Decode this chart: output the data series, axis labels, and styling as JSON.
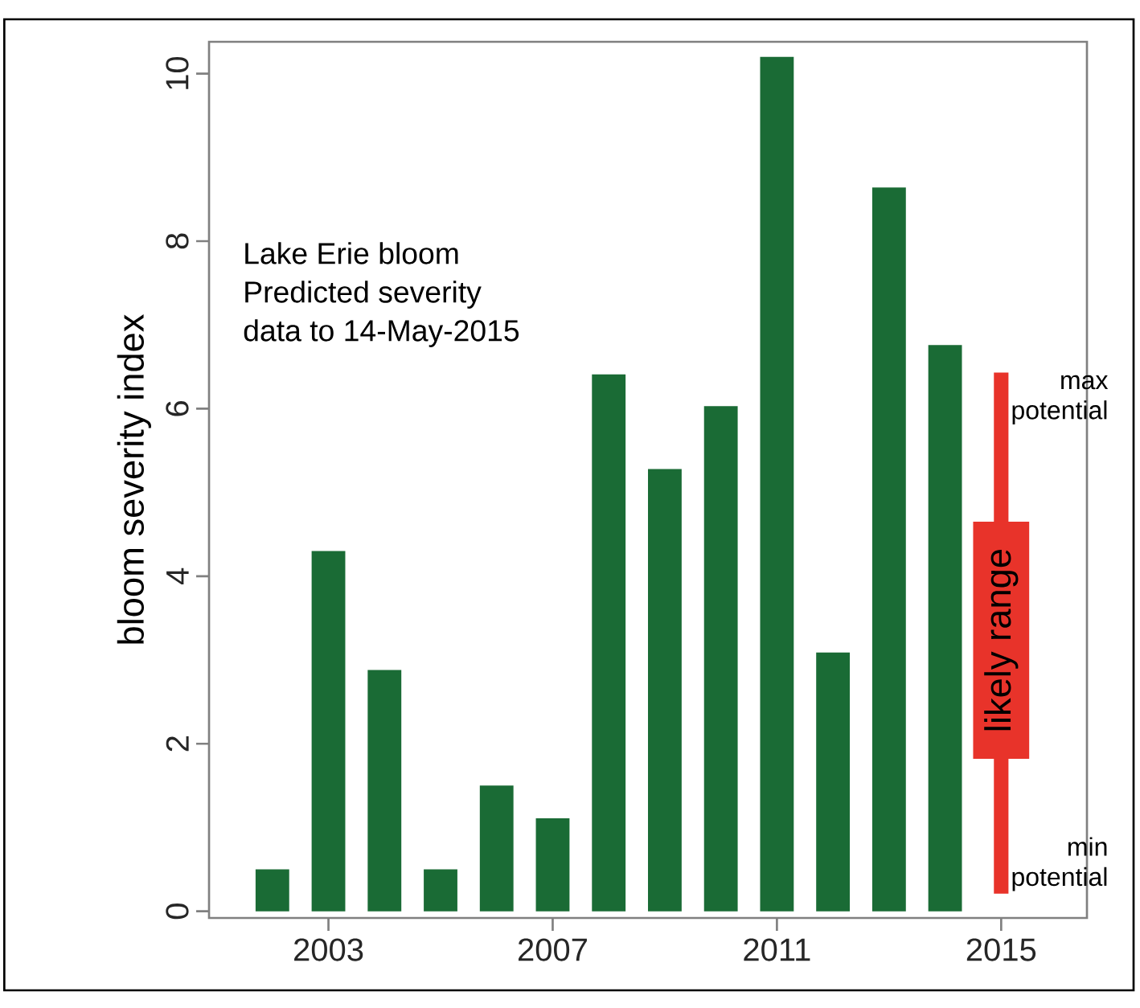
{
  "chart_data": {
    "type": "bar",
    "ylabel": "bloom severity index",
    "x": [
      2002,
      2003,
      2004,
      2005,
      2006,
      2007,
      2008,
      2009,
      2010,
      2011,
      2012,
      2013,
      2014,
      2015
    ],
    "series": [
      {
        "color": "#1a6b35",
        "values": [
          0.5,
          4.3,
          2.88,
          0.5,
          1.5,
          1.11,
          6.41,
          5.28,
          6.03,
          10.2,
          3.09,
          8.64,
          6.76,
          null
        ]
      },
      {
        "color": "#e8332a",
        "values": [
          null,
          null,
          null,
          null,
          null,
          null,
          null,
          null,
          null,
          null,
          null,
          null,
          null,
          6.22
        ],
        "base": [
          null,
          null,
          null,
          null,
          null,
          null,
          null,
          null,
          null,
          null,
          null,
          null,
          null,
          0.21
        ]
      },
      {
        "name": "likely range",
        "color": "#e8332a",
        "values": [
          null,
          null,
          null,
          null,
          null,
          null,
          null,
          null,
          null,
          null,
          null,
          null,
          null,
          2.83
        ],
        "base": [
          null,
          null,
          null,
          null,
          null,
          null,
          null,
          null,
          null,
          null,
          null,
          null,
          null,
          1.82
        ]
      }
    ],
    "xlim": [
      2000.87,
      2016.53
    ],
    "ylim": [
      -0.08,
      10.38
    ],
    "xticks": [
      2003,
      2007,
      2011,
      2015
    ],
    "yticks": [
      0,
      2,
      4,
      6,
      8,
      10
    ],
    "annotations": [
      "Lake Erie bloom",
      "Predicted severity",
      "data to 14-May-2015",
      {
        "text": "max potential",
        "x": 2015,
        "y": 6.43
      },
      {
        "text": "min potential",
        "x": 2015,
        "y": 0.21
      }
    ]
  }
}
